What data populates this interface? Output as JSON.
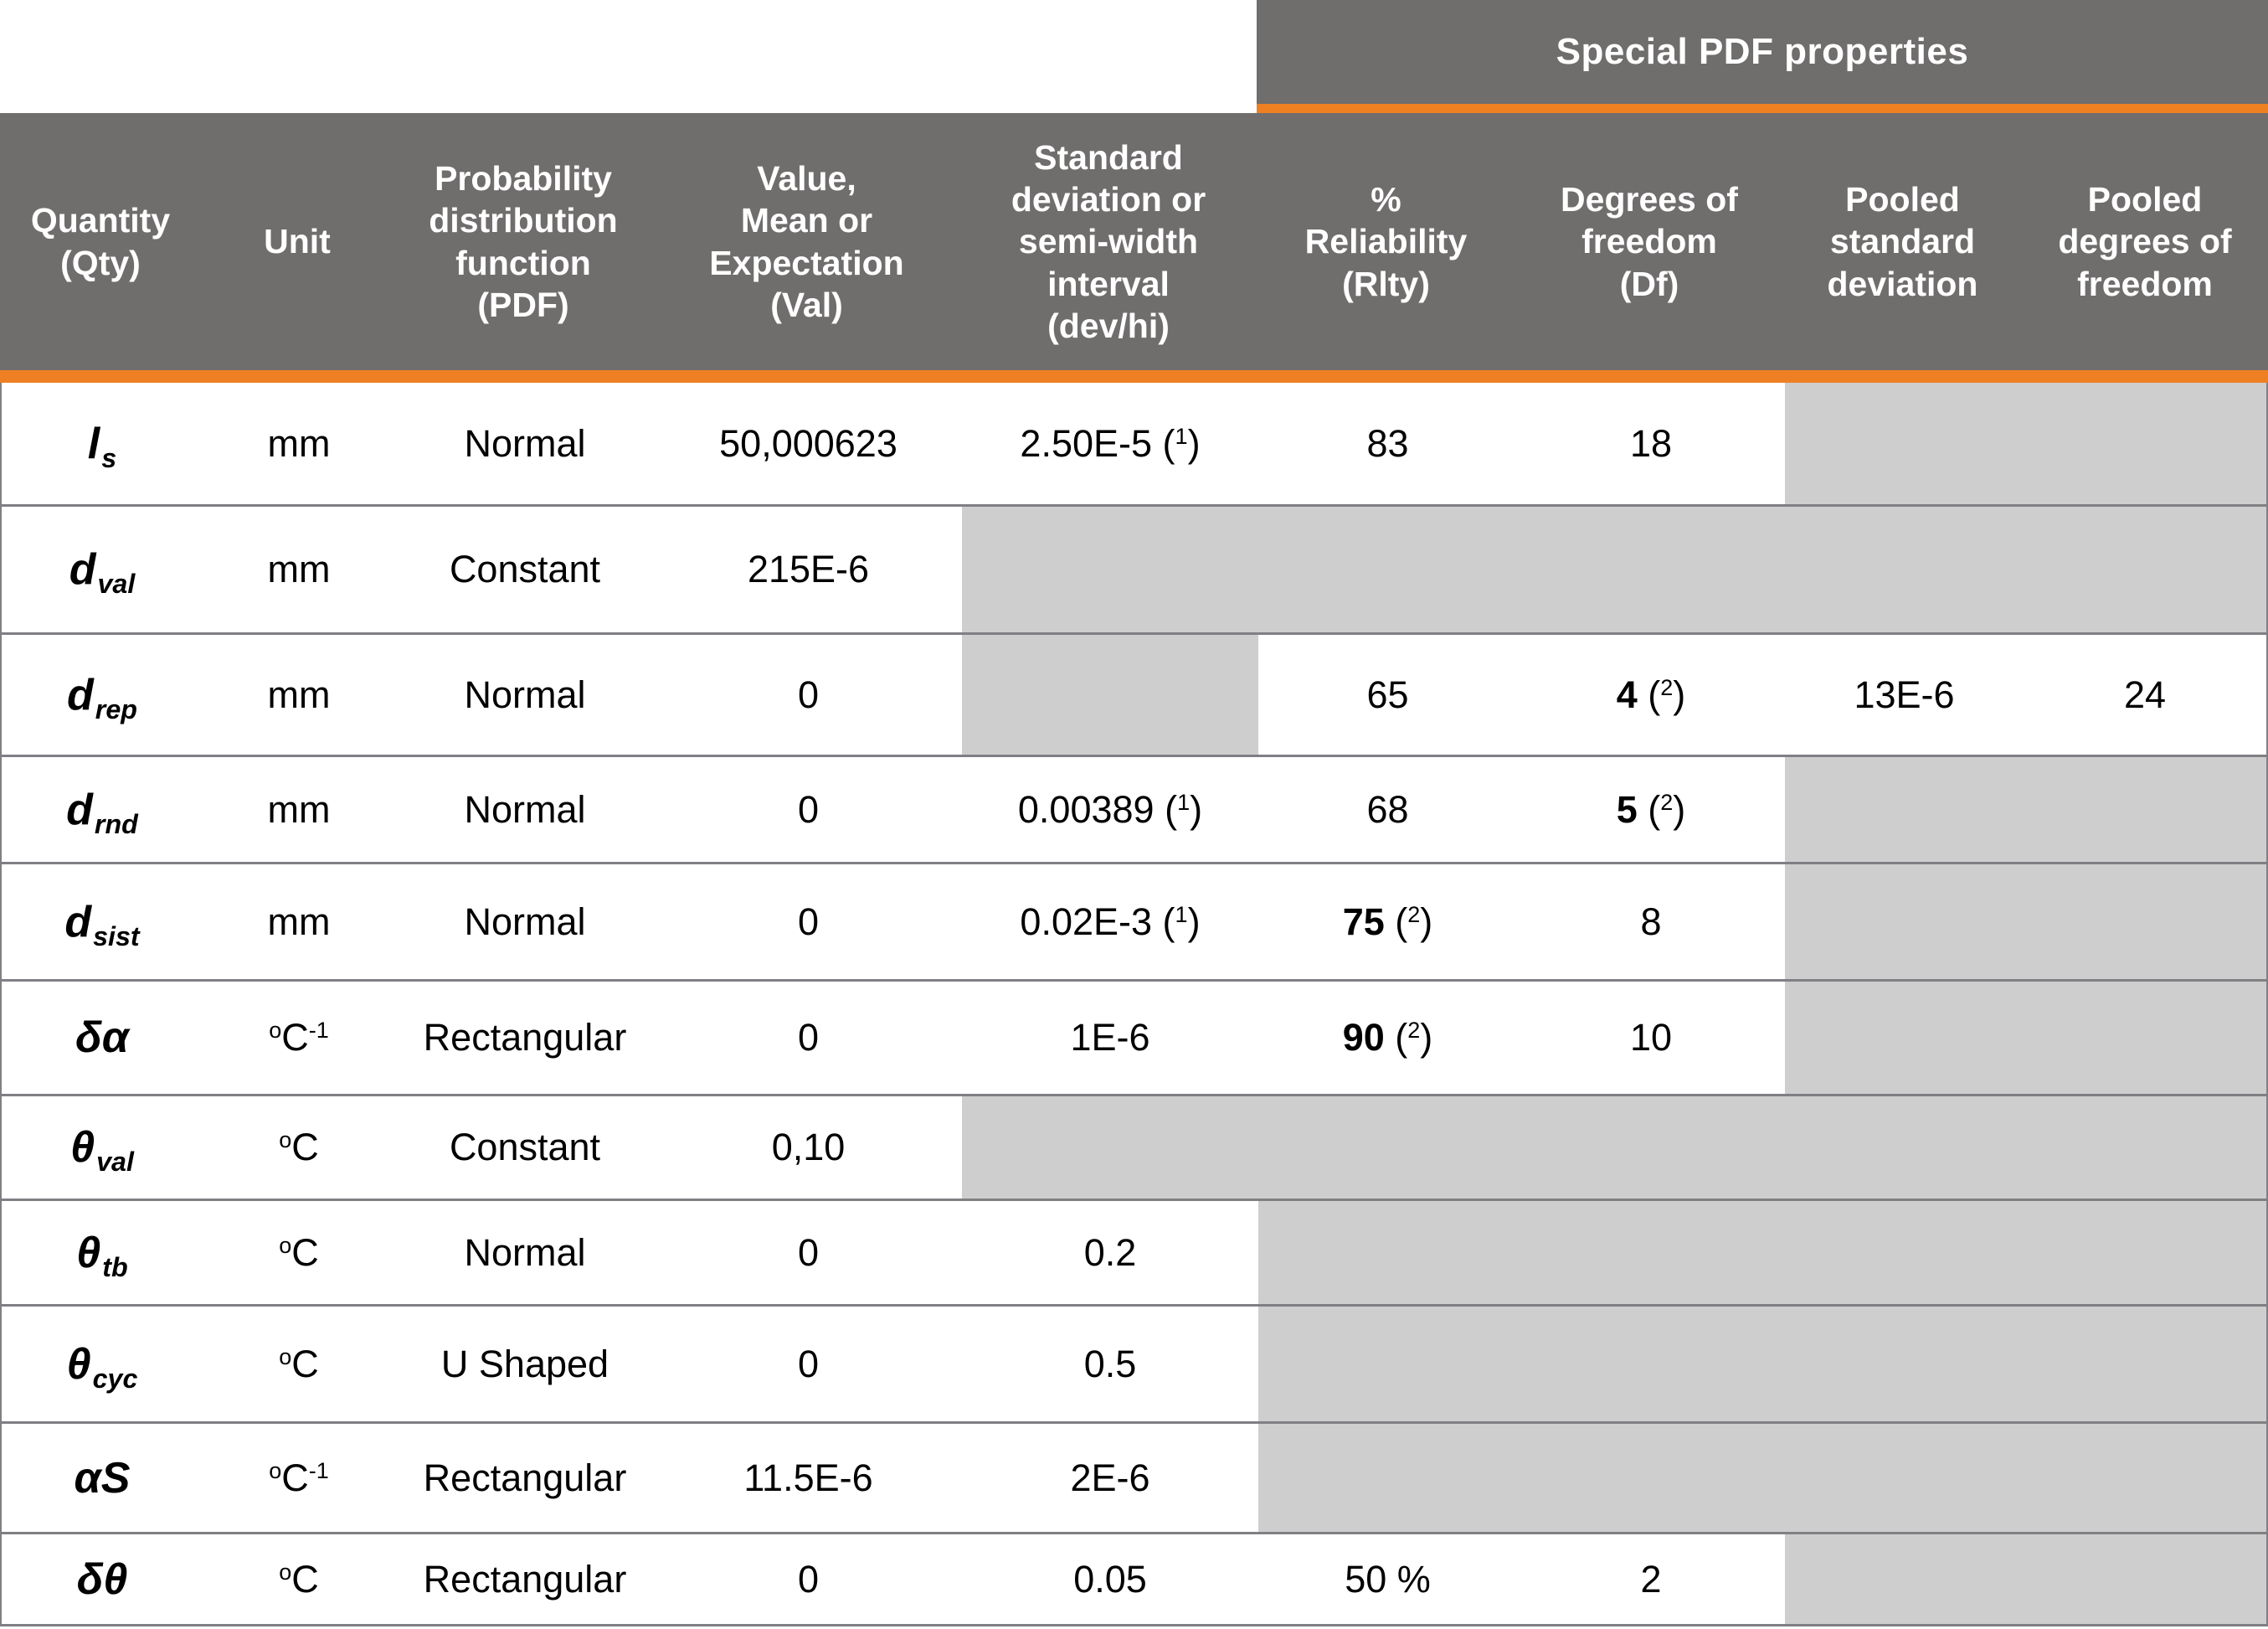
{
  "banner": {
    "label": "Special PDF properties"
  },
  "colors": {
    "header_bg": "#706d6d",
    "accent_orange": "#ee8023",
    "disabled_cell_gray": "#cecece",
    "row_border_gray": "#807f83",
    "header_text": "#ffffff",
    "body_text": "#000000"
  },
  "table": {
    "columns": [
      {
        "key": "qty",
        "label": "Quantity\n(Qty)"
      },
      {
        "key": "unit",
        "label": "Unit"
      },
      {
        "key": "pdf",
        "label": "Probability\ndistribution\nfunction\n(PDF)"
      },
      {
        "key": "val",
        "label": "Value,\nMean or\nExpectation\n(Val)"
      },
      {
        "key": "devhi",
        "label": "Standard\ndeviation or\nsemi-width\ninterval\n(dev/hi)"
      },
      {
        "key": "rlty",
        "label": "%\nReliability\n(Rlty)"
      },
      {
        "key": "df",
        "label": "Degrees of\nfreedom\n(Df)"
      },
      {
        "key": "pooled-sd",
        "label": "Pooled\nstandard\ndeviation"
      },
      {
        "key": "pooled-df",
        "label": "Pooled\ndegrees of\nfreedom"
      }
    ],
    "rows": [
      {
        "id": "ls",
        "cells": [
          {
            "bg": "w",
            "segs": [
              {
                "t": "l"
              },
              {
                "t": "s",
                "f": "sub"
              }
            ]
          },
          {
            "bg": "w",
            "segs": [
              {
                "t": "mm"
              }
            ]
          },
          {
            "bg": "w",
            "segs": [
              {
                "t": "Normal"
              }
            ]
          },
          {
            "bg": "w",
            "segs": [
              {
                "t": "50,000623"
              }
            ]
          },
          {
            "bg": "w",
            "segs": [
              {
                "t": "2.50E-5 ("
              },
              {
                "t": "1",
                "f": "sup"
              },
              {
                "t": ")"
              }
            ]
          },
          {
            "bg": "w",
            "segs": [
              {
                "t": "83"
              }
            ]
          },
          {
            "bg": "w",
            "segs": [
              {
                "t": "18"
              }
            ]
          },
          {
            "bg": "g",
            "segs": []
          },
          {
            "bg": "g",
            "segs": []
          }
        ]
      },
      {
        "id": "dval",
        "cells": [
          {
            "bg": "w",
            "segs": [
              {
                "t": "d"
              },
              {
                "t": "val",
                "f": "sub"
              }
            ]
          },
          {
            "bg": "w",
            "segs": [
              {
                "t": "mm"
              }
            ]
          },
          {
            "bg": "w",
            "segs": [
              {
                "t": "Constant"
              }
            ]
          },
          {
            "bg": "w",
            "segs": [
              {
                "t": "215E-6"
              }
            ]
          },
          {
            "bg": "g",
            "segs": []
          },
          {
            "bg": "g",
            "segs": []
          },
          {
            "bg": "g",
            "segs": []
          },
          {
            "bg": "g",
            "segs": []
          },
          {
            "bg": "g",
            "segs": []
          }
        ]
      },
      {
        "id": "drep",
        "cells": [
          {
            "bg": "w",
            "segs": [
              {
                "t": "d"
              },
              {
                "t": "rep",
                "f": "sub"
              }
            ]
          },
          {
            "bg": "w",
            "segs": [
              {
                "t": "mm"
              }
            ]
          },
          {
            "bg": "w",
            "segs": [
              {
                "t": "Normal"
              }
            ]
          },
          {
            "bg": "w",
            "segs": [
              {
                "t": "0"
              }
            ]
          },
          {
            "bg": "g",
            "segs": []
          },
          {
            "bg": "w",
            "segs": [
              {
                "t": "65"
              }
            ]
          },
          {
            "bg": "w",
            "segs": [
              {
                "t": "4",
                "f": "b"
              },
              {
                "t": " ("
              },
              {
                "t": "2",
                "f": "sup"
              },
              {
                "t": ")"
              }
            ]
          },
          {
            "bg": "w",
            "segs": [
              {
                "t": "13E-6"
              }
            ]
          },
          {
            "bg": "w",
            "segs": [
              {
                "t": "24"
              }
            ]
          }
        ]
      },
      {
        "id": "drnd",
        "cells": [
          {
            "bg": "w",
            "segs": [
              {
                "t": "d"
              },
              {
                "t": "rnd",
                "f": "sub"
              }
            ]
          },
          {
            "bg": "w",
            "segs": [
              {
                "t": "mm"
              }
            ]
          },
          {
            "bg": "w",
            "segs": [
              {
                "t": "Normal"
              }
            ]
          },
          {
            "bg": "w",
            "segs": [
              {
                "t": "0"
              }
            ]
          },
          {
            "bg": "w",
            "segs": [
              {
                "t": "0.00389 ("
              },
              {
                "t": "1",
                "f": "sup"
              },
              {
                "t": ")"
              }
            ]
          },
          {
            "bg": "w",
            "segs": [
              {
                "t": "68"
              }
            ]
          },
          {
            "bg": "w",
            "segs": [
              {
                "t": "5",
                "f": "b"
              },
              {
                "t": " ("
              },
              {
                "t": "2",
                "f": "sup"
              },
              {
                "t": ")"
              }
            ]
          },
          {
            "bg": "g",
            "segs": []
          },
          {
            "bg": "g",
            "segs": []
          }
        ]
      },
      {
        "id": "dsist",
        "cells": [
          {
            "bg": "w",
            "segs": [
              {
                "t": "d"
              },
              {
                "t": "sist",
                "f": "sub"
              }
            ]
          },
          {
            "bg": "w",
            "segs": [
              {
                "t": "mm"
              }
            ]
          },
          {
            "bg": "w",
            "segs": [
              {
                "t": "Normal"
              }
            ]
          },
          {
            "bg": "w",
            "segs": [
              {
                "t": "0"
              }
            ]
          },
          {
            "bg": "w",
            "segs": [
              {
                "t": "0.02E-3 ("
              },
              {
                "t": "1",
                "f": "sup"
              },
              {
                "t": ")"
              }
            ]
          },
          {
            "bg": "w",
            "segs": [
              {
                "t": "75",
                "f": "b"
              },
              {
                "t": " ("
              },
              {
                "t": "2",
                "f": "sup"
              },
              {
                "t": ")"
              }
            ]
          },
          {
            "bg": "w",
            "segs": [
              {
                "t": "8"
              }
            ]
          },
          {
            "bg": "g",
            "segs": []
          },
          {
            "bg": "g",
            "segs": []
          }
        ]
      },
      {
        "id": "delta-alpha",
        "cells": [
          {
            "bg": "w",
            "segs": [
              {
                "t": "δα"
              }
            ]
          },
          {
            "bg": "w",
            "segs": [
              {
                "t": "o",
                "f": "sup"
              },
              {
                "t": "C"
              },
              {
                "t": "-1",
                "f": "sup"
              }
            ]
          },
          {
            "bg": "w",
            "segs": [
              {
                "t": "Rectangular"
              }
            ]
          },
          {
            "bg": "w",
            "segs": [
              {
                "t": "0"
              }
            ]
          },
          {
            "bg": "w",
            "segs": [
              {
                "t": "1E-6"
              }
            ]
          },
          {
            "bg": "w",
            "segs": [
              {
                "t": "90",
                "f": "b"
              },
              {
                "t": " ("
              },
              {
                "t": "2",
                "f": "sup"
              },
              {
                "t": ")"
              }
            ]
          },
          {
            "bg": "w",
            "segs": [
              {
                "t": "10"
              }
            ]
          },
          {
            "bg": "g",
            "segs": []
          },
          {
            "bg": "g",
            "segs": []
          }
        ]
      },
      {
        "id": "theta-val",
        "cells": [
          {
            "bg": "w",
            "segs": [
              {
                "t": "θ"
              },
              {
                "t": "val",
                "f": "sub"
              }
            ]
          },
          {
            "bg": "w",
            "segs": [
              {
                "t": "o",
                "f": "sup"
              },
              {
                "t": "C"
              }
            ]
          },
          {
            "bg": "w",
            "segs": [
              {
                "t": "Constant"
              }
            ]
          },
          {
            "bg": "w",
            "segs": [
              {
                "t": "0,10"
              }
            ]
          },
          {
            "bg": "g",
            "segs": []
          },
          {
            "bg": "g",
            "segs": []
          },
          {
            "bg": "g",
            "segs": []
          },
          {
            "bg": "g",
            "segs": []
          },
          {
            "bg": "g",
            "segs": []
          }
        ]
      },
      {
        "id": "theta-tb",
        "cells": [
          {
            "bg": "w",
            "segs": [
              {
                "t": "θ"
              },
              {
                "t": "tb",
                "f": "sub"
              }
            ]
          },
          {
            "bg": "w",
            "segs": [
              {
                "t": "o",
                "f": "sup"
              },
              {
                "t": "C"
              }
            ]
          },
          {
            "bg": "w",
            "segs": [
              {
                "t": "Normal"
              }
            ]
          },
          {
            "bg": "w",
            "segs": [
              {
                "t": "0"
              }
            ]
          },
          {
            "bg": "w",
            "segs": [
              {
                "t": "0.2"
              }
            ]
          },
          {
            "bg": "g",
            "segs": []
          },
          {
            "bg": "g",
            "segs": []
          },
          {
            "bg": "g",
            "segs": []
          },
          {
            "bg": "g",
            "segs": []
          }
        ]
      },
      {
        "id": "theta-cyc",
        "cells": [
          {
            "bg": "w",
            "segs": [
              {
                "t": "θ"
              },
              {
                "t": "cyc",
                "f": "sub"
              }
            ]
          },
          {
            "bg": "w",
            "segs": [
              {
                "t": "o",
                "f": "sup"
              },
              {
                "t": "C"
              }
            ]
          },
          {
            "bg": "w",
            "segs": [
              {
                "t": "U Shaped"
              }
            ]
          },
          {
            "bg": "w",
            "segs": [
              {
                "t": "0"
              }
            ]
          },
          {
            "bg": "w",
            "segs": [
              {
                "t": "0.5"
              }
            ]
          },
          {
            "bg": "g",
            "segs": []
          },
          {
            "bg": "g",
            "segs": []
          },
          {
            "bg": "g",
            "segs": []
          },
          {
            "bg": "g",
            "segs": []
          }
        ]
      },
      {
        "id": "alpha-s",
        "cells": [
          {
            "bg": "w",
            "segs": [
              {
                "t": "αS"
              }
            ]
          },
          {
            "bg": "w",
            "segs": [
              {
                "t": "o",
                "f": "sup"
              },
              {
                "t": "C"
              },
              {
                "t": "-1",
                "f": "sup"
              }
            ]
          },
          {
            "bg": "w",
            "segs": [
              {
                "t": "Rectangular"
              }
            ]
          },
          {
            "bg": "w",
            "segs": [
              {
                "t": "11.5E-6"
              }
            ]
          },
          {
            "bg": "w",
            "segs": [
              {
                "t": "2E-6"
              }
            ]
          },
          {
            "bg": "g",
            "segs": []
          },
          {
            "bg": "g",
            "segs": []
          },
          {
            "bg": "g",
            "segs": []
          },
          {
            "bg": "g",
            "segs": []
          }
        ]
      },
      {
        "id": "delta-theta",
        "cells": [
          {
            "bg": "w",
            "segs": [
              {
                "t": "δθ"
              }
            ]
          },
          {
            "bg": "w",
            "segs": [
              {
                "t": "o",
                "f": "sup"
              },
              {
                "t": "C"
              }
            ]
          },
          {
            "bg": "w",
            "segs": [
              {
                "t": "Rectangular"
              }
            ]
          },
          {
            "bg": "w",
            "segs": [
              {
                "t": "0"
              }
            ]
          },
          {
            "bg": "w",
            "segs": [
              {
                "t": "0.05"
              }
            ]
          },
          {
            "bg": "w",
            "segs": [
              {
                "t": "50 %"
              }
            ]
          },
          {
            "bg": "w",
            "segs": [
              {
                "t": "2"
              }
            ]
          },
          {
            "bg": "g",
            "segs": []
          },
          {
            "bg": "g",
            "segs": []
          }
        ]
      }
    ]
  }
}
